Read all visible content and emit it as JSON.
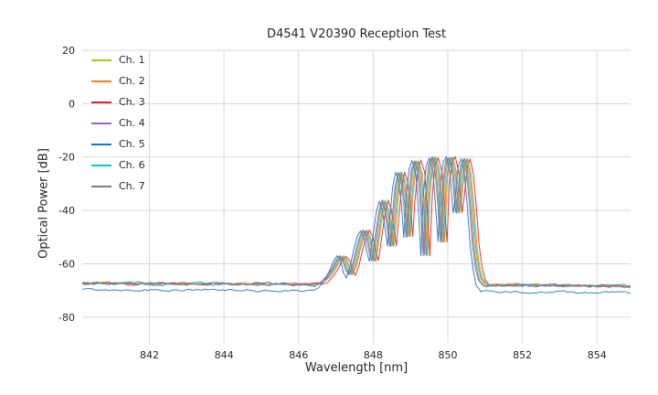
{
  "figure": {
    "title": "D4541 V20390 Reception Test",
    "xlabel": "Wavelength [nm]",
    "ylabel": "Optical Power [dB]"
  },
  "chart_data": {
    "type": "line",
    "title": "D4541 V20390 Reception Test",
    "xlabel": "Wavelength [nm]",
    "ylabel": "Optical Power [dB]",
    "xlim": [
      840.2,
      854.9
    ],
    "ylim": [
      -90,
      20
    ],
    "xticks": [
      842,
      844,
      846,
      848,
      850,
      852,
      854
    ],
    "yticks": [
      20,
      0,
      -20,
      -40,
      -60,
      -80
    ],
    "grid": true,
    "grid_color": "#d9d9d9",
    "legend_position": "upper left",
    "noise_floor_db": -67.5,
    "peak_power_db": -20,
    "signal_band_nm": [
      846.5,
      851.0
    ],
    "series": [
      {
        "name": "Ch. 1",
        "color": "#bcbd22",
        "dx": 0.0,
        "floor": -67.2,
        "floor_right": -68.2,
        "seed": 11
      },
      {
        "name": "Ch. 2",
        "color": "#ff7f0e",
        "dx": 0.06,
        "floor": -67.0,
        "floor_right": -68.0,
        "seed": 22
      },
      {
        "name": "Ch. 3",
        "color": "#d62728",
        "dx": 0.12,
        "floor": -67.3,
        "floor_right": -68.3,
        "seed": 33
      },
      {
        "name": "Ch. 4",
        "color": "#9467bd",
        "dx": -0.06,
        "floor": -67.4,
        "floor_right": -68.4,
        "seed": 44
      },
      {
        "name": "Ch. 5",
        "color": "#1f77b4",
        "dx": -0.12,
        "floor": -69.6,
        "floor_right": -70.9,
        "seed": 55
      },
      {
        "name": "Ch. 6",
        "color": "#17becf",
        "dx": 0.03,
        "floor": -67.1,
        "floor_right": -68.1,
        "seed": 66
      },
      {
        "name": "Ch. 7",
        "color": "#7f7f7f",
        "dx": -0.03,
        "floor": -67.5,
        "floor_right": -68.5,
        "seed": 77
      }
    ],
    "base_curve": [
      [
        846.5,
        -67.3
      ],
      [
        846.65,
        -66.5
      ],
      [
        846.8,
        -64.5
      ],
      [
        846.95,
        -61.5
      ],
      [
        847.05,
        -58.8
      ],
      [
        847.15,
        -57.2
      ],
      [
        847.25,
        -58.8
      ],
      [
        847.32,
        -62.0
      ],
      [
        847.4,
        -63.8
      ],
      [
        847.5,
        -60.5
      ],
      [
        847.6,
        -54.5
      ],
      [
        847.7,
        -49.5
      ],
      [
        847.78,
        -47.5
      ],
      [
        847.88,
        -50.5
      ],
      [
        847.96,
        -56.5
      ],
      [
        848.02,
        -59.0
      ],
      [
        848.1,
        -51.0
      ],
      [
        848.2,
        -41.0
      ],
      [
        848.28,
        -36.5
      ],
      [
        848.36,
        -39.5
      ],
      [
        848.44,
        -47.0
      ],
      [
        848.5,
        -53.5
      ],
      [
        848.56,
        -44.0
      ],
      [
        848.64,
        -31.5
      ],
      [
        848.72,
        -26.0
      ],
      [
        848.8,
        -28.5
      ],
      [
        848.88,
        -38.0
      ],
      [
        848.94,
        -50.0
      ],
      [
        849.0,
        -36.0
      ],
      [
        849.08,
        -24.5
      ],
      [
        849.16,
        -21.5
      ],
      [
        849.26,
        -26.0
      ],
      [
        849.34,
        -42.0
      ],
      [
        849.4,
        -57.0
      ],
      [
        849.46,
        -35.0
      ],
      [
        849.54,
        -23.0
      ],
      [
        849.62,
        -20.3
      ],
      [
        849.72,
        -25.0
      ],
      [
        849.8,
        -40.0
      ],
      [
        849.86,
        -52.0
      ],
      [
        849.92,
        -30.0
      ],
      [
        850.0,
        -21.5
      ],
      [
        850.08,
        -20.2
      ],
      [
        850.18,
        -26.0
      ],
      [
        850.26,
        -41.0
      ],
      [
        850.32,
        -35.0
      ],
      [
        850.4,
        -23.5
      ],
      [
        850.48,
        -20.8
      ],
      [
        850.56,
        -26.0
      ],
      [
        850.64,
        -38.0
      ],
      [
        850.72,
        -53.0
      ],
      [
        850.8,
        -61.5
      ],
      [
        850.88,
        -65.5
      ],
      [
        851.0,
        -67.3
      ]
    ],
    "flat": {
      "left_end": 846.5,
      "right_start": 851.0,
      "noise_amp": 0.8,
      "step": 0.08
    }
  }
}
